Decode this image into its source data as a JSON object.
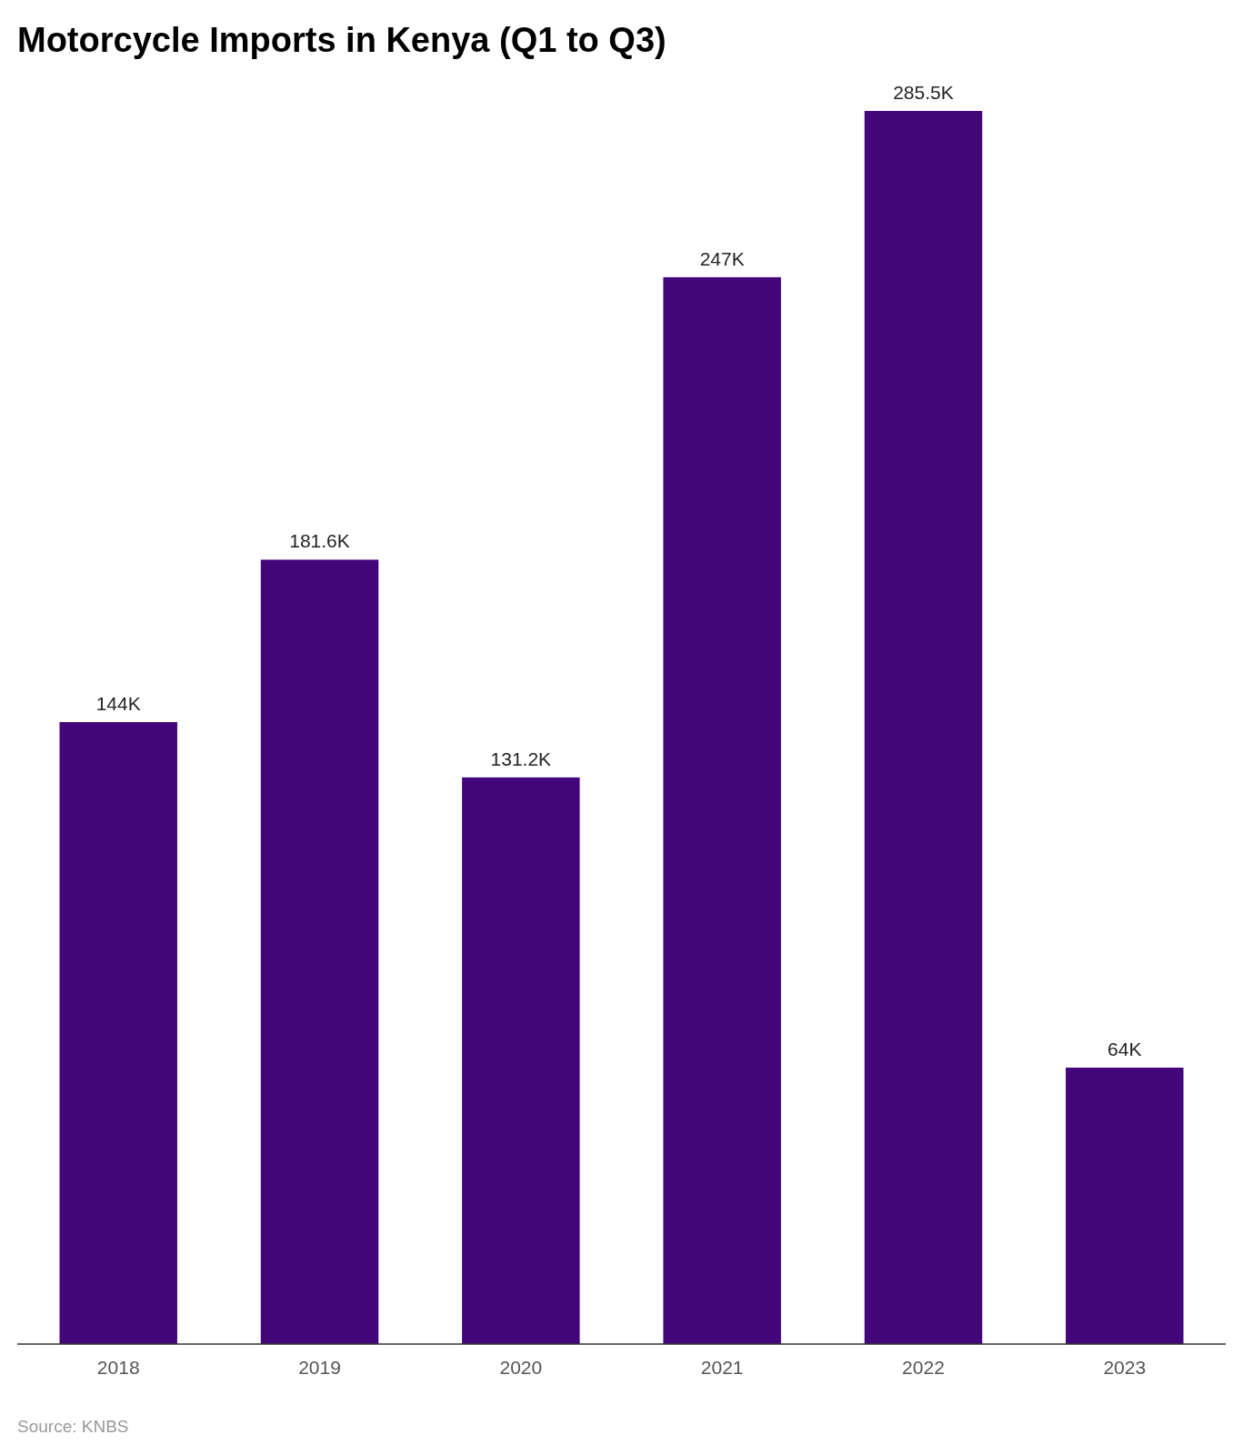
{
  "chart_data": {
    "type": "bar",
    "title": "Motorcycle Imports in Kenya (Q1 to Q3)",
    "categories": [
      "2018",
      "2019",
      "2020",
      "2021",
      "2022",
      "2023"
    ],
    "values": [
      144,
      181.6,
      131.2,
      247,
      285.5,
      64
    ],
    "value_labels": [
      "144K",
      "181.6K",
      "131.2K",
      "247K",
      "285.5K",
      "64K"
    ],
    "color": "#43057a",
    "annotations": [
      "Source: KNBS"
    ]
  }
}
